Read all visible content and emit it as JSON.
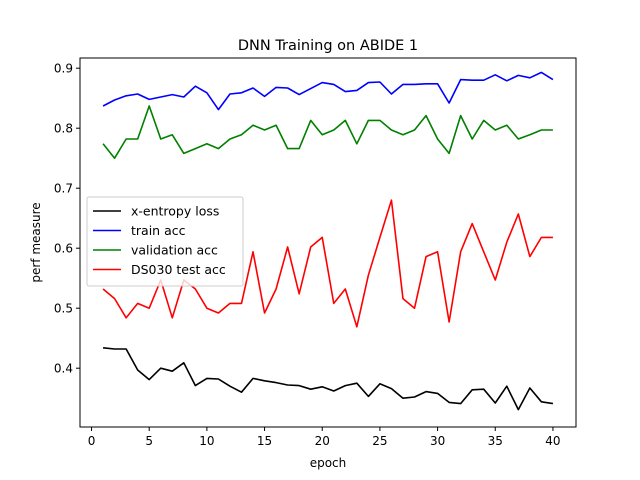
{
  "chart_data": {
    "type": "line",
    "title": "DNN Training on ABIDE 1",
    "xlabel": "epoch",
    "ylabel": "perf measure",
    "xlim": [
      -1,
      42
    ],
    "ylim": [
      0.302,
      0.917
    ],
    "xticks": [
      0,
      5,
      10,
      15,
      20,
      25,
      30,
      35,
      40
    ],
    "yticks": [
      0.4,
      0.5,
      0.6,
      0.7,
      0.8,
      0.9
    ],
    "legend": "center-left",
    "grid": false,
    "x": [
      1,
      2,
      3,
      4,
      5,
      6,
      7,
      8,
      9,
      10,
      11,
      12,
      13,
      14,
      15,
      16,
      17,
      18,
      19,
      20,
      21,
      22,
      23,
      24,
      25,
      26,
      27,
      28,
      29,
      30,
      31,
      32,
      33,
      34,
      35,
      36,
      37,
      38,
      39,
      40
    ],
    "series": [
      {
        "name": "x-entropy loss",
        "color": "#000000",
        "values": [
          0.434,
          0.432,
          0.432,
          0.397,
          0.381,
          0.4,
          0.395,
          0.409,
          0.371,
          0.383,
          0.382,
          0.37,
          0.36,
          0.383,
          0.379,
          0.376,
          0.372,
          0.371,
          0.365,
          0.369,
          0.362,
          0.371,
          0.375,
          0.353,
          0.374,
          0.366,
          0.35,
          0.352,
          0.361,
          0.358,
          0.343,
          0.341,
          0.364,
          0.365,
          0.342,
          0.37,
          0.331,
          0.367,
          0.344,
          0.341
        ]
      },
      {
        "name": "train acc",
        "color": "#0000ff",
        "values": [
          0.837,
          0.847,
          0.854,
          0.857,
          0.848,
          0.852,
          0.856,
          0.852,
          0.87,
          0.859,
          0.831,
          0.857,
          0.859,
          0.867,
          0.853,
          0.868,
          0.867,
          0.856,
          0.866,
          0.876,
          0.873,
          0.861,
          0.863,
          0.876,
          0.877,
          0.857,
          0.873,
          0.873,
          0.874,
          0.874,
          0.842,
          0.881,
          0.88,
          0.88,
          0.889,
          0.879,
          0.888,
          0.884,
          0.893,
          0.881
        ]
      },
      {
        "name": "validation acc",
        "color": "#008000",
        "values": [
          0.774,
          0.75,
          0.782,
          0.782,
          0.837,
          0.782,
          0.789,
          0.758,
          0.766,
          0.774,
          0.766,
          0.782,
          0.789,
          0.805,
          0.797,
          0.805,
          0.766,
          0.766,
          0.813,
          0.789,
          0.797,
          0.813,
          0.774,
          0.813,
          0.813,
          0.797,
          0.789,
          0.797,
          0.821,
          0.782,
          0.758,
          0.821,
          0.782,
          0.813,
          0.797,
          0.805,
          0.782,
          0.789,
          0.797,
          0.797
        ]
      },
      {
        "name": "DS030 test acc",
        "color": "#ff0000",
        "values": [
          0.532,
          0.516,
          0.484,
          0.508,
          0.5,
          0.547,
          0.484,
          0.547,
          0.532,
          0.5,
          0.492,
          0.508,
          0.508,
          0.594,
          0.492,
          0.532,
          0.602,
          0.524,
          0.602,
          0.618,
          0.508,
          0.532,
          0.469,
          0.555,
          0.618,
          0.68,
          0.516,
          0.5,
          0.586,
          0.594,
          0.477,
          0.594,
          0.641,
          0.594,
          0.547,
          0.61,
          0.657,
          0.586,
          0.618,
          0.618
        ]
      }
    ]
  }
}
